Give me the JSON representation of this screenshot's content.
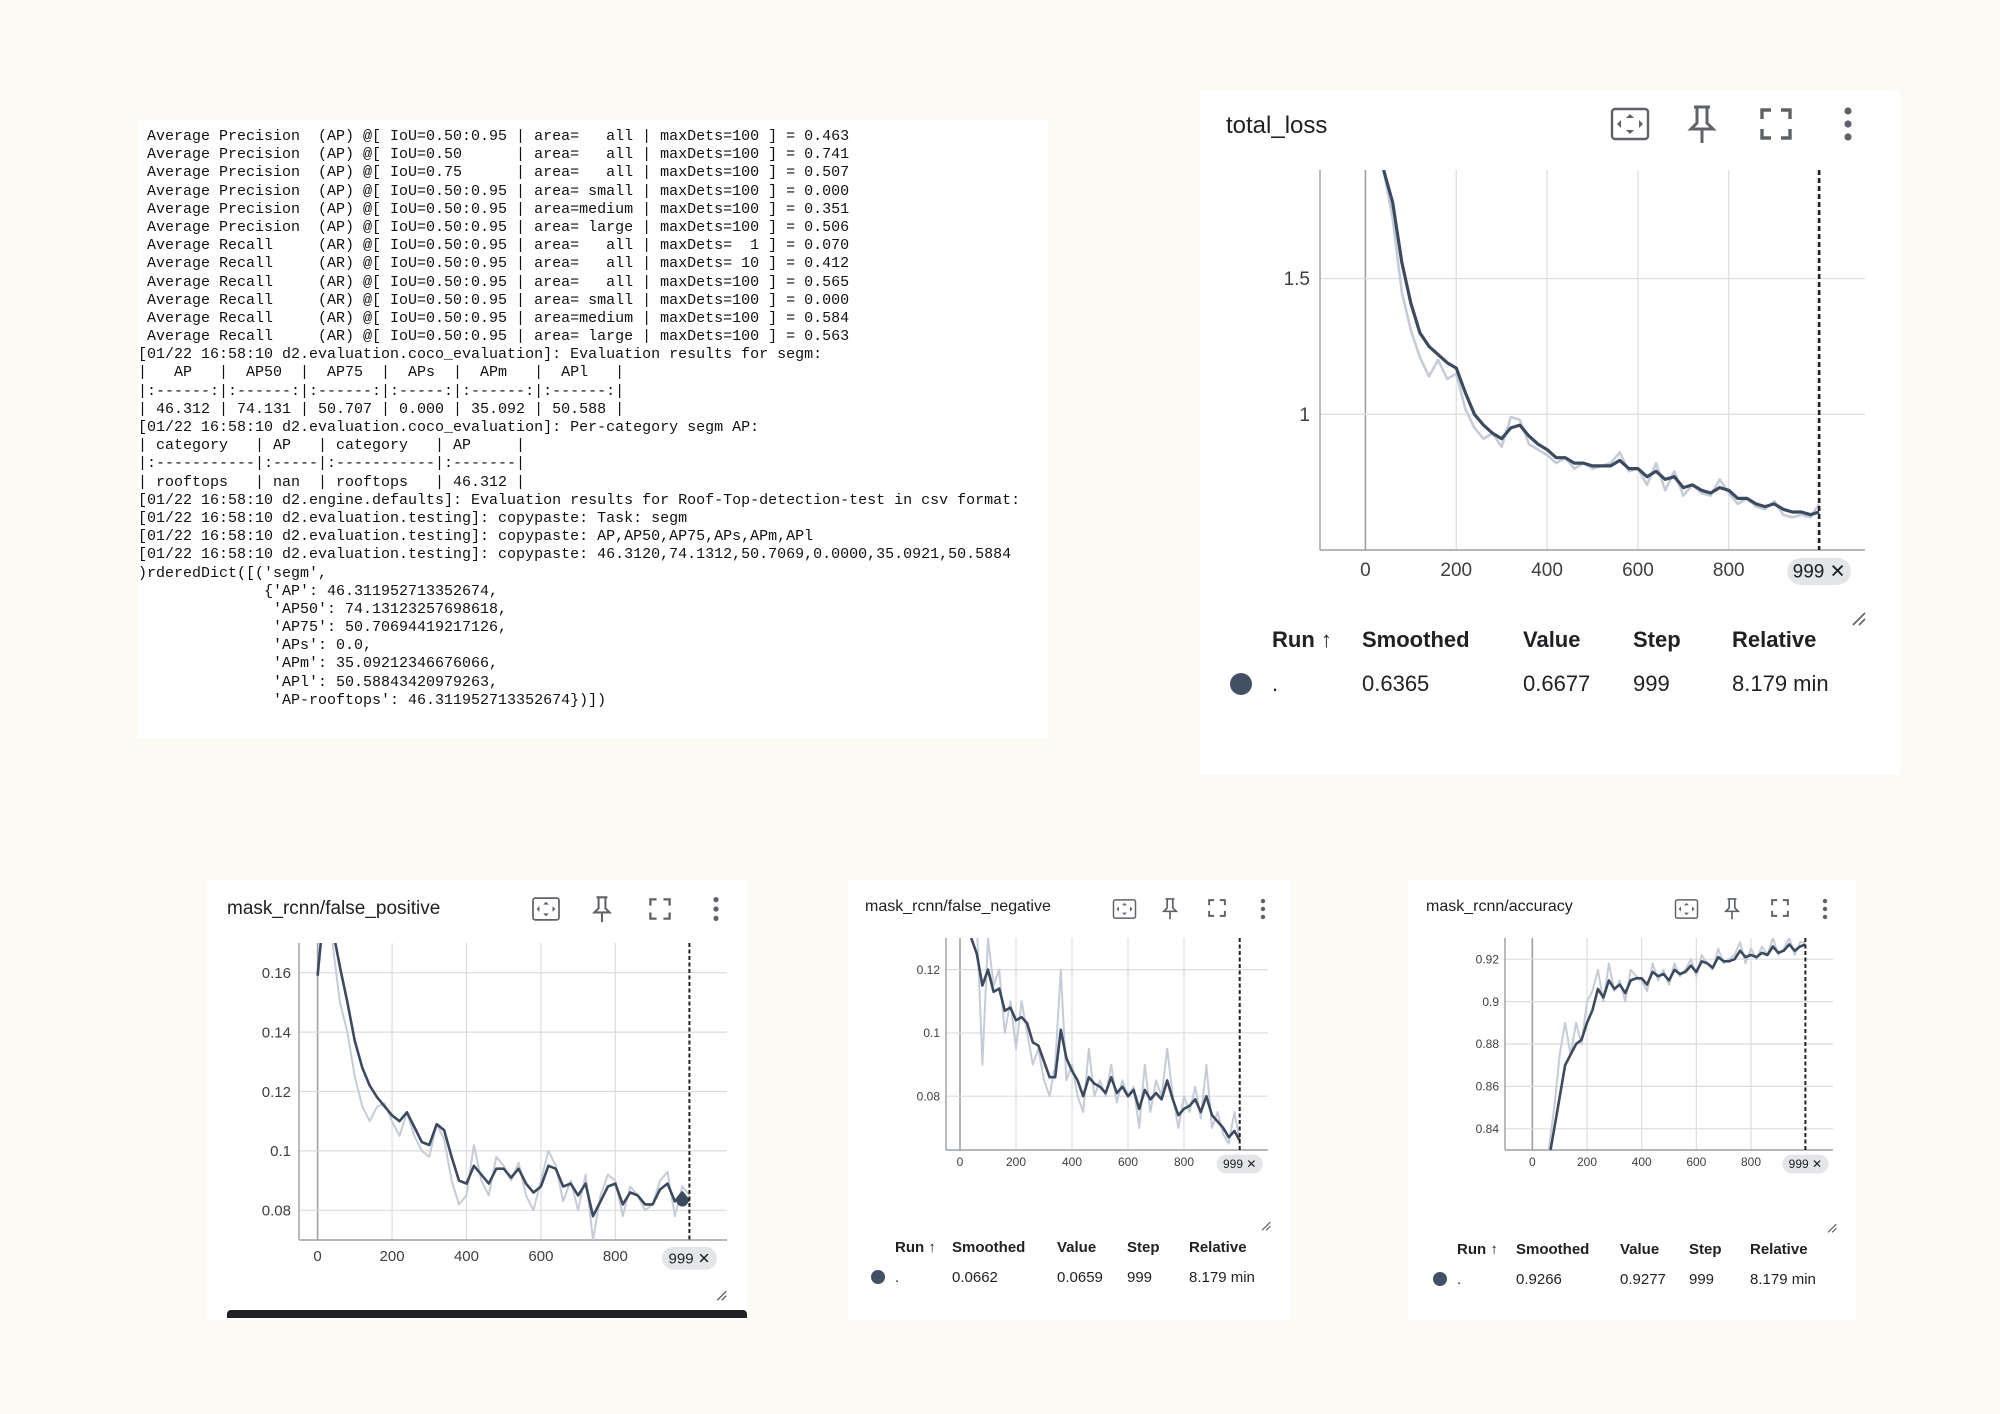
{
  "console": {
    "lines": [
      " Average Precision  (AP) @[ IoU=0.50:0.95 | area=   all | maxDets=100 ] = 0.463",
      " Average Precision  (AP) @[ IoU=0.50      | area=   all | maxDets=100 ] = 0.741",
      " Average Precision  (AP) @[ IoU=0.75      | area=   all | maxDets=100 ] = 0.507",
      " Average Precision  (AP) @[ IoU=0.50:0.95 | area= small | maxDets=100 ] = 0.000",
      " Average Precision  (AP) @[ IoU=0.50:0.95 | area=medium | maxDets=100 ] = 0.351",
      " Average Precision  (AP) @[ IoU=0.50:0.95 | area= large | maxDets=100 ] = 0.506",
      " Average Recall     (AR) @[ IoU=0.50:0.95 | area=   all | maxDets=  1 ] = 0.070",
      " Average Recall     (AR) @[ IoU=0.50:0.95 | area=   all | maxDets= 10 ] = 0.412",
      " Average Recall     (AR) @[ IoU=0.50:0.95 | area=   all | maxDets=100 ] = 0.565",
      " Average Recall     (AR) @[ IoU=0.50:0.95 | area= small | maxDets=100 ] = 0.000",
      " Average Recall     (AR) @[ IoU=0.50:0.95 | area=medium | maxDets=100 ] = 0.584",
      " Average Recall     (AR) @[ IoU=0.50:0.95 | area= large | maxDets=100 ] = 0.563",
      "[01/22 16:58:10 d2.evaluation.coco_evaluation]: Evaluation results for segm:",
      "|   AP   |  AP50  |  AP75  |  APs  |  APm   |  APl   |",
      "|:------:|:------:|:------:|:-----:|:------:|:------:|",
      "| 46.312 | 74.131 | 50.707 | 0.000 | 35.092 | 50.588 |",
      "[01/22 16:58:10 d2.evaluation.coco_evaluation]: Per-category segm AP:",
      "| category   | AP   | category   | AP     |",
      "|:-----------|:-----|:-----------|:-------|",
      "| rooftops   | nan  | rooftops   | 46.312 |",
      "[01/22 16:58:10 d2.engine.defaults]: Evaluation results for Roof-Top-detection-test in csv format:",
      "[01/22 16:58:10 d2.evaluation.testing]: copypaste: Task: segm",
      "[01/22 16:58:10 d2.evaluation.testing]: copypaste: AP,AP50,AP75,APs,APm,APl",
      "[01/22 16:58:10 d2.evaluation.testing]: copypaste: 46.3120,74.1312,50.7069,0.0000,35.0921,50.5884",
      ")rderedDict([('segm',",
      "              {'AP': 46.311952713352674,",
      "               'AP50': 74.13123257698618,",
      "               'AP75': 50.70694419217126,",
      "               'APs': 0.0,",
      "               'APm': 35.09212346676066,",
      "               'APl': 50.58843420979263,",
      "               'AP-rooftops': 46.311952713352674})])"
    ]
  },
  "table_headers": {
    "run": "Run ↑",
    "smoothed": "Smoothed",
    "value": "Value",
    "step": "Step",
    "relative": "Relative"
  },
  "colors": {
    "smoothed_line": "#3c4a5f",
    "raw_line": "#c5ccd8",
    "grid": "#dadce0",
    "run_dot": "#425066"
  },
  "icons": [
    "fit-domain-icon",
    "pin-icon",
    "fullscreen-icon",
    "more-vert-icon",
    "resize-corner-icon"
  ],
  "charts": [
    {
      "id": "total_loss",
      "title": "total_loss",
      "step_marker": "999 ✕",
      "row": {
        "run": ".",
        "smoothed": "0.6365",
        "value": "0.6677",
        "step": "999",
        "relative": "8.179 min"
      }
    },
    {
      "id": "false_positive",
      "title": "mask_rcnn/false_positive",
      "step_marker": "999 ✕"
    },
    {
      "id": "false_negative",
      "title": "mask_rcnn/false_negative",
      "step_marker": "999 ✕",
      "row": {
        "run": ".",
        "smoothed": "0.0662",
        "value": "0.0659",
        "step": "999",
        "relative": "8.179 min"
      }
    },
    {
      "id": "accuracy",
      "title": "mask_rcnn/accuracy",
      "step_marker": "999 ✕",
      "row": {
        "run": ".",
        "smoothed": "0.9266",
        "value": "0.9277",
        "step": "999",
        "relative": "8.179 min"
      }
    }
  ],
  "chart_data": [
    {
      "type": "line",
      "xlim": [
        -100,
        1100
      ],
      "ylim": [
        0.5,
        1.9
      ],
      "xticks": [
        0,
        200,
        400,
        600,
        800
      ],
      "yticks": [
        1,
        1.5
      ],
      "grid": true,
      "x": [
        40,
        60,
        80,
        100,
        120,
        140,
        160,
        180,
        200,
        220,
        240,
        260,
        280,
        300,
        320,
        340,
        360,
        380,
        400,
        420,
        440,
        460,
        480,
        500,
        520,
        540,
        560,
        580,
        600,
        620,
        640,
        660,
        680,
        700,
        720,
        740,
        760,
        780,
        800,
        820,
        840,
        860,
        880,
        900,
        920,
        940,
        960,
        980,
        999
      ],
      "series": [
        {
          "role": "raw",
          "values": [
            1.9,
            1.72,
            1.45,
            1.31,
            1.21,
            1.14,
            1.2,
            1.13,
            1.15,
            1.02,
            0.95,
            0.91,
            0.93,
            0.88,
            0.99,
            0.98,
            0.89,
            0.87,
            0.85,
            0.82,
            0.84,
            0.8,
            0.82,
            0.8,
            0.81,
            0.82,
            0.86,
            0.79,
            0.8,
            0.74,
            0.82,
            0.72,
            0.79,
            0.7,
            0.74,
            0.71,
            0.7,
            0.76,
            0.71,
            0.67,
            0.69,
            0.66,
            0.65,
            0.68,
            0.63,
            0.62,
            0.63,
            0.62,
            0.67
          ]
        },
        {
          "role": "smoothed",
          "values": [
            1.9,
            1.78,
            1.56,
            1.41,
            1.3,
            1.25,
            1.22,
            1.19,
            1.17,
            1.08,
            1.0,
            0.96,
            0.93,
            0.91,
            0.95,
            0.96,
            0.92,
            0.89,
            0.87,
            0.84,
            0.84,
            0.82,
            0.82,
            0.81,
            0.81,
            0.81,
            0.83,
            0.8,
            0.8,
            0.77,
            0.79,
            0.76,
            0.77,
            0.73,
            0.74,
            0.72,
            0.71,
            0.73,
            0.72,
            0.69,
            0.69,
            0.67,
            0.66,
            0.67,
            0.65,
            0.64,
            0.64,
            0.63,
            0.64
          ]
        }
      ]
    },
    {
      "type": "line",
      "xlim": [
        -50,
        1100
      ],
      "ylim": [
        0.07,
        0.17
      ],
      "xticks": [
        0,
        200,
        400,
        600,
        800
      ],
      "yticks": [
        0.08,
        0.1,
        0.12,
        0.14,
        0.16
      ],
      "grid": true,
      "x": [
        0,
        20,
        40,
        60,
        80,
        100,
        120,
        140,
        160,
        180,
        200,
        220,
        240,
        260,
        280,
        300,
        320,
        340,
        360,
        380,
        400,
        420,
        440,
        460,
        480,
        500,
        520,
        540,
        560,
        580,
        600,
        620,
        640,
        660,
        680,
        700,
        720,
        740,
        760,
        780,
        800,
        820,
        840,
        860,
        880,
        900,
        920,
        940,
        960,
        980,
        999
      ],
      "series": [
        {
          "role": "raw",
          "values": [
            0.159,
            0.19,
            0.17,
            0.15,
            0.14,
            0.125,
            0.115,
            0.11,
            0.115,
            0.116,
            0.11,
            0.105,
            0.113,
            0.105,
            0.1,
            0.098,
            0.109,
            0.104,
            0.09,
            0.082,
            0.085,
            0.102,
            0.09,
            0.085,
            0.098,
            0.095,
            0.09,
            0.096,
            0.085,
            0.08,
            0.09,
            0.1,
            0.095,
            0.083,
            0.09,
            0.08,
            0.092,
            0.07,
            0.085,
            0.092,
            0.09,
            0.078,
            0.088,
            0.085,
            0.08,
            0.082,
            0.09,
            0.093,
            0.078,
            0.088,
            0.085
          ]
        },
        {
          "role": "smoothed",
          "values": [
            0.159,
            0.185,
            0.175,
            0.162,
            0.15,
            0.137,
            0.128,
            0.122,
            0.118,
            0.115,
            0.112,
            0.11,
            0.113,
            0.108,
            0.103,
            0.102,
            0.109,
            0.107,
            0.098,
            0.09,
            0.089,
            0.095,
            0.092,
            0.089,
            0.094,
            0.094,
            0.091,
            0.094,
            0.089,
            0.086,
            0.088,
            0.095,
            0.094,
            0.088,
            0.089,
            0.085,
            0.089,
            0.078,
            0.083,
            0.088,
            0.089,
            0.082,
            0.086,
            0.085,
            0.082,
            0.082,
            0.087,
            0.089,
            0.083,
            0.086,
            0.083
          ]
        }
      ]
    },
    {
      "type": "line",
      "xlim": [
        -50,
        1100
      ],
      "ylim": [
        0.063,
        0.13
      ],
      "xticks": [
        0,
        200,
        400,
        600,
        800
      ],
      "yticks": [
        0.08,
        0.1,
        0.12
      ],
      "grid": true,
      "x": [
        40,
        60,
        80,
        100,
        120,
        140,
        160,
        180,
        200,
        220,
        240,
        260,
        280,
        300,
        320,
        340,
        360,
        380,
        400,
        420,
        440,
        460,
        480,
        500,
        520,
        540,
        560,
        580,
        600,
        620,
        640,
        660,
        680,
        700,
        720,
        740,
        760,
        780,
        800,
        820,
        840,
        860,
        880,
        900,
        920,
        940,
        960,
        980,
        999
      ],
      "series": [
        {
          "role": "raw",
          "values": [
            0.14,
            0.135,
            0.09,
            0.13,
            0.115,
            0.12,
            0.1,
            0.11,
            0.095,
            0.11,
            0.1,
            0.09,
            0.095,
            0.085,
            0.08,
            0.09,
            0.12,
            0.085,
            0.09,
            0.08,
            0.075,
            0.095,
            0.08,
            0.085,
            0.08,
            0.09,
            0.078,
            0.085,
            0.08,
            0.083,
            0.07,
            0.09,
            0.075,
            0.085,
            0.08,
            0.095,
            0.08,
            0.07,
            0.08,
            0.075,
            0.083,
            0.073,
            0.09,
            0.07,
            0.075,
            0.068,
            0.065,
            0.075,
            0.066
          ]
        },
        {
          "role": "smoothed",
          "values": [
            0.13,
            0.125,
            0.115,
            0.12,
            0.113,
            0.114,
            0.107,
            0.108,
            0.104,
            0.105,
            0.103,
            0.097,
            0.096,
            0.091,
            0.086,
            0.086,
            0.101,
            0.092,
            0.088,
            0.085,
            0.08,
            0.086,
            0.084,
            0.083,
            0.081,
            0.086,
            0.081,
            0.083,
            0.08,
            0.082,
            0.076,
            0.082,
            0.079,
            0.081,
            0.079,
            0.085,
            0.079,
            0.074,
            0.076,
            0.077,
            0.079,
            0.075,
            0.08,
            0.074,
            0.072,
            0.07,
            0.067,
            0.069,
            0.066
          ]
        }
      ]
    },
    {
      "type": "line",
      "xlim": [
        -100,
        1100
      ],
      "ylim": [
        0.83,
        0.93
      ],
      "xticks": [
        0,
        200,
        400,
        600,
        800
      ],
      "yticks": [
        0.84,
        0.86,
        0.88,
        0.9,
        0.92
      ],
      "grid": true,
      "x": [
        60,
        80,
        100,
        120,
        140,
        160,
        180,
        200,
        220,
        240,
        260,
        280,
        300,
        320,
        340,
        360,
        380,
        400,
        420,
        440,
        460,
        480,
        500,
        520,
        540,
        560,
        580,
        600,
        620,
        640,
        660,
        680,
        700,
        720,
        740,
        760,
        780,
        800,
        820,
        840,
        860,
        880,
        900,
        920,
        940,
        960,
        980,
        999
      ],
      "series": [
        {
          "role": "raw",
          "values": [
            0.83,
            0.85,
            0.875,
            0.89,
            0.875,
            0.89,
            0.88,
            0.9,
            0.905,
            0.915,
            0.9,
            0.918,
            0.905,
            0.91,
            0.9,
            0.915,
            0.912,
            0.91,
            0.905,
            0.918,
            0.91,
            0.915,
            0.908,
            0.918,
            0.912,
            0.915,
            0.92,
            0.912,
            0.922,
            0.918,
            0.915,
            0.925,
            0.918,
            0.92,
            0.922,
            0.928,
            0.918,
            0.925,
            0.92,
            0.926,
            0.922,
            0.93,
            0.922,
            0.925,
            0.93,
            0.922,
            0.928,
            0.928
          ]
        },
        {
          "role": "smoothed",
          "values": [
            0.825,
            0.84,
            0.855,
            0.87,
            0.875,
            0.88,
            0.882,
            0.89,
            0.896,
            0.906,
            0.902,
            0.91,
            0.906,
            0.908,
            0.904,
            0.91,
            0.911,
            0.911,
            0.908,
            0.914,
            0.912,
            0.913,
            0.91,
            0.915,
            0.913,
            0.914,
            0.917,
            0.914,
            0.919,
            0.918,
            0.916,
            0.921,
            0.919,
            0.919,
            0.92,
            0.924,
            0.921,
            0.922,
            0.921,
            0.923,
            0.922,
            0.926,
            0.923,
            0.924,
            0.927,
            0.924,
            0.926,
            0.927
          ]
        }
      ]
    }
  ]
}
